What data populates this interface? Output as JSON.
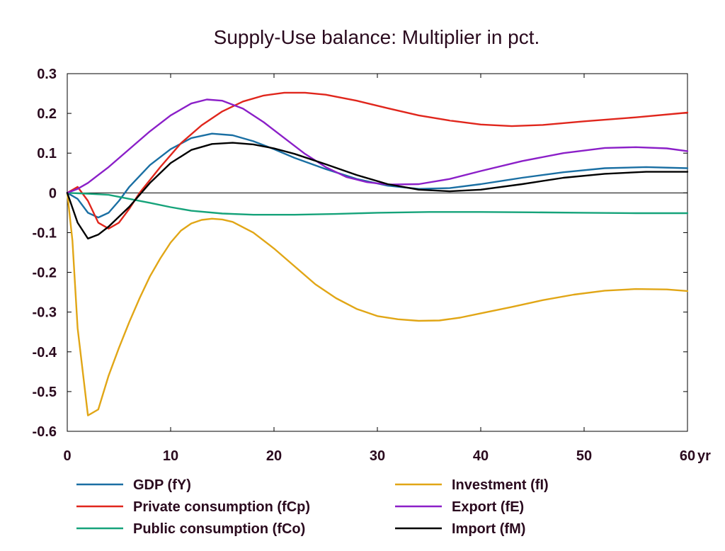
{
  "chart_data": {
    "type": "line",
    "title": "Supply-Use balance: Multiplier in pct.",
    "xlabel": "",
    "ylabel": "",
    "x_unit_label": "yr",
    "xlim": [
      0,
      60
    ],
    "ylim": [
      -0.6,
      0.3
    ],
    "x_ticks": [
      0,
      10,
      20,
      30,
      40,
      50,
      60
    ],
    "x_tick_labels": [
      "0",
      "10",
      "20",
      "30",
      "40",
      "50",
      "60"
    ],
    "y_ticks": [
      0.3,
      0.2,
      0.1,
      0,
      -0.1,
      -0.2,
      -0.3,
      -0.4,
      -0.5,
      -0.6
    ],
    "y_tick_labels": [
      "0.3",
      "0.2",
      "0.1",
      "0",
      "-0.1",
      "-0.2",
      "-0.3",
      "-0.4",
      "-0.5",
      "-0.6"
    ],
    "grid": false,
    "zero_line": true,
    "legend_position": "bottom",
    "series": [
      {
        "name": "GDP (fY)",
        "color": "#1a6fa3",
        "points": [
          [
            0,
            0
          ],
          [
            1,
            -0.015
          ],
          [
            2,
            -0.05
          ],
          [
            3,
            -0.062
          ],
          [
            4,
            -0.05
          ],
          [
            5,
            -0.02
          ],
          [
            6,
            0.015
          ],
          [
            8,
            0.07
          ],
          [
            10,
            0.11
          ],
          [
            12,
            0.138
          ],
          [
            14,
            0.149
          ],
          [
            16,
            0.145
          ],
          [
            18,
            0.13
          ],
          [
            20,
            0.11
          ],
          [
            22,
            0.088
          ],
          [
            25,
            0.06
          ],
          [
            28,
            0.035
          ],
          [
            31,
            0.018
          ],
          [
            34,
            0.01
          ],
          [
            37,
            0.012
          ],
          [
            40,
            0.022
          ],
          [
            44,
            0.038
          ],
          [
            48,
            0.052
          ],
          [
            52,
            0.062
          ],
          [
            56,
            0.065
          ],
          [
            60,
            0.062
          ]
        ]
      },
      {
        "name": "Private consumption (fCp)",
        "color": "#e0261c",
        "points": [
          [
            0,
            0
          ],
          [
            1,
            0.015
          ],
          [
            2,
            -0.02
          ],
          [
            3,
            -0.075
          ],
          [
            4,
            -0.09
          ],
          [
            5,
            -0.075
          ],
          [
            6,
            -0.04
          ],
          [
            7,
            0.0
          ],
          [
            9,
            0.065
          ],
          [
            11,
            0.125
          ],
          [
            13,
            0.17
          ],
          [
            15,
            0.205
          ],
          [
            17,
            0.23
          ],
          [
            19,
            0.245
          ],
          [
            21,
            0.252
          ],
          [
            23,
            0.252
          ],
          [
            25,
            0.247
          ],
          [
            28,
            0.232
          ],
          [
            31,
            0.213
          ],
          [
            34,
            0.195
          ],
          [
            37,
            0.182
          ],
          [
            40,
            0.172
          ],
          [
            43,
            0.168
          ],
          [
            46,
            0.171
          ],
          [
            50,
            0.18
          ],
          [
            55,
            0.19
          ],
          [
            60,
            0.202
          ]
        ]
      },
      {
        "name": "Public consumption (fCo)",
        "color": "#16a37a",
        "points": [
          [
            0,
            0
          ],
          [
            2,
            -0.002
          ],
          [
            4,
            -0.005
          ],
          [
            6,
            -0.015
          ],
          [
            8,
            -0.025
          ],
          [
            10,
            -0.036
          ],
          [
            12,
            -0.045
          ],
          [
            15,
            -0.052
          ],
          [
            18,
            -0.055
          ],
          [
            22,
            -0.055
          ],
          [
            26,
            -0.053
          ],
          [
            30,
            -0.05
          ],
          [
            35,
            -0.048
          ],
          [
            40,
            -0.048
          ],
          [
            45,
            -0.049
          ],
          [
            50,
            -0.05
          ],
          [
            55,
            -0.051
          ],
          [
            60,
            -0.051
          ]
        ]
      },
      {
        "name": "Investment (fI)",
        "color": "#e1a616",
        "points": [
          [
            0,
            0
          ],
          [
            0.5,
            -0.12
          ],
          [
            1,
            -0.34
          ],
          [
            2,
            -0.56
          ],
          [
            3,
            -0.545
          ],
          [
            4,
            -0.46
          ],
          [
            5,
            -0.39
          ],
          [
            6,
            -0.325
          ],
          [
            7,
            -0.265
          ],
          [
            8,
            -0.21
          ],
          [
            9,
            -0.165
          ],
          [
            10,
            -0.125
          ],
          [
            11,
            -0.095
          ],
          [
            12,
            -0.077
          ],
          [
            13,
            -0.068
          ],
          [
            14,
            -0.065
          ],
          [
            15,
            -0.067
          ],
          [
            16,
            -0.073
          ],
          [
            18,
            -0.1
          ],
          [
            20,
            -0.14
          ],
          [
            22,
            -0.185
          ],
          [
            24,
            -0.23
          ],
          [
            26,
            -0.265
          ],
          [
            28,
            -0.292
          ],
          [
            30,
            -0.31
          ],
          [
            32,
            -0.318
          ],
          [
            34,
            -0.322
          ],
          [
            36,
            -0.321
          ],
          [
            38,
            -0.314
          ],
          [
            40,
            -0.303
          ],
          [
            43,
            -0.287
          ],
          [
            46,
            -0.27
          ],
          [
            49,
            -0.256
          ],
          [
            52,
            -0.246
          ],
          [
            55,
            -0.242
          ],
          [
            58,
            -0.243
          ],
          [
            60,
            -0.247
          ]
        ]
      },
      {
        "name": "Export (fE)",
        "color": "#8b1fc8",
        "points": [
          [
            0,
            0
          ],
          [
            1,
            0.01
          ],
          [
            2,
            0.025
          ],
          [
            3,
            0.045
          ],
          [
            4,
            0.065
          ],
          [
            6,
            0.11
          ],
          [
            8,
            0.155
          ],
          [
            10,
            0.195
          ],
          [
            12,
            0.225
          ],
          [
            13.5,
            0.235
          ],
          [
            15,
            0.232
          ],
          [
            17,
            0.212
          ],
          [
            19,
            0.178
          ],
          [
            21,
            0.138
          ],
          [
            23,
            0.098
          ],
          [
            25,
            0.065
          ],
          [
            27,
            0.04
          ],
          [
            29,
            0.027
          ],
          [
            31,
            0.021
          ],
          [
            34,
            0.022
          ],
          [
            37,
            0.035
          ],
          [
            40,
            0.055
          ],
          [
            44,
            0.08
          ],
          [
            48,
            0.1
          ],
          [
            52,
            0.113
          ],
          [
            55,
            0.115
          ],
          [
            58,
            0.112
          ],
          [
            60,
            0.105
          ]
        ]
      },
      {
        "name": "Import (fM)",
        "color": "#000000",
        "points": [
          [
            0,
            0
          ],
          [
            1,
            -0.075
          ],
          [
            2,
            -0.115
          ],
          [
            3,
            -0.105
          ],
          [
            4,
            -0.085
          ],
          [
            6,
            -0.035
          ],
          [
            8,
            0.025
          ],
          [
            10,
            0.075
          ],
          [
            12,
            0.108
          ],
          [
            14,
            0.123
          ],
          [
            16,
            0.126
          ],
          [
            18,
            0.122
          ],
          [
            20,
            0.112
          ],
          [
            22,
            0.098
          ],
          [
            25,
            0.072
          ],
          [
            28,
            0.045
          ],
          [
            31,
            0.022
          ],
          [
            34,
            0.008
          ],
          [
            37,
            0.004
          ],
          [
            40,
            0.008
          ],
          [
            44,
            0.022
          ],
          [
            48,
            0.038
          ],
          [
            52,
            0.048
          ],
          [
            56,
            0.053
          ],
          [
            60,
            0.053
          ]
        ]
      }
    ]
  }
}
